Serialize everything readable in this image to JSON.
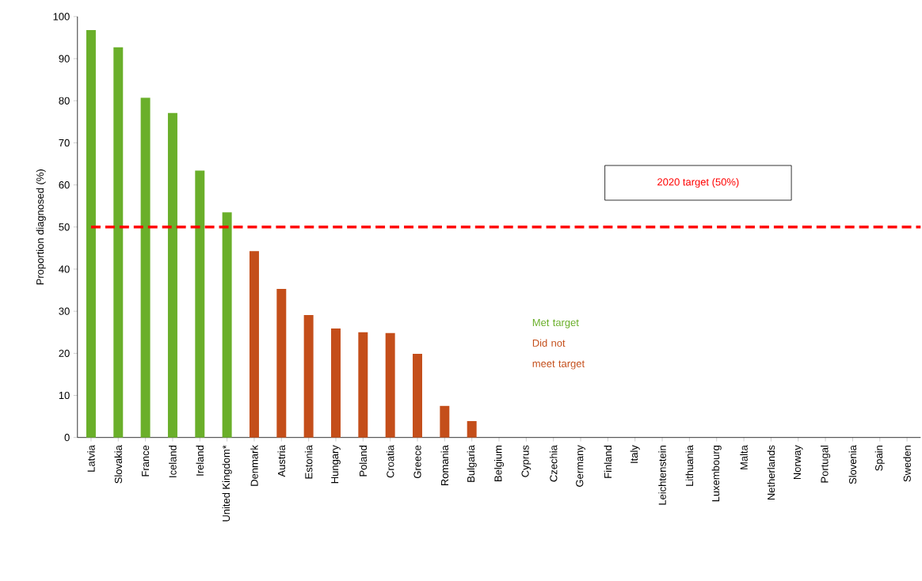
{
  "chart_data": {
    "type": "bar",
    "ylabel": "Proportion diagnosed (%)",
    "categories": [
      "Latvia",
      "Slovakia",
      "France",
      "Iceland",
      "Ireland",
      "United Kingdom*",
      "Denmark",
      "Austria",
      "Estonia",
      "Hungary",
      "Poland",
      "Croatia",
      "Greece",
      "Romania",
      "Bulgaria",
      "Belgium",
      "Cyprus",
      "Czechia",
      "Germany",
      "Finland",
      "Italy",
      "Leichtenstein",
      "Lithuania",
      "Luxembourg",
      "Malta",
      "Netherlands",
      "Norway",
      "Portugal",
      "Slovenia",
      "Spain",
      "Sweden"
    ],
    "series": [
      {
        "name": "Met target",
        "color": "#6aaf2a",
        "values": [
          96.8,
          92.7,
          80.7,
          77.1,
          63.4,
          53.5,
          null,
          null,
          null,
          null,
          null,
          null,
          null,
          null,
          null,
          null,
          null,
          null,
          null,
          null,
          null,
          null,
          null,
          null,
          null,
          null,
          null,
          null,
          null,
          null,
          null
        ]
      },
      {
        "name": "Did not meet target",
        "color": "#c44e1a",
        "values": [
          null,
          null,
          null,
          null,
          null,
          null,
          44.3,
          35.3,
          29.1,
          25.9,
          25.0,
          24.8,
          19.9,
          7.5,
          3.9,
          null,
          null,
          null,
          null,
          null,
          null,
          null,
          null,
          null,
          null,
          null,
          null,
          null,
          null,
          null,
          null
        ]
      }
    ],
    "ylim": [
      0,
      100
    ],
    "yticks": [
      0,
      10,
      20,
      30,
      40,
      50,
      60,
      70,
      80,
      90,
      100
    ],
    "ref_lines": [
      {
        "axis": "y",
        "value": 50,
        "label": "2020 target (50%)",
        "color": "#ff0000",
        "line_style": "dashed"
      }
    ],
    "legend": "bottom",
    "grid": false
  }
}
